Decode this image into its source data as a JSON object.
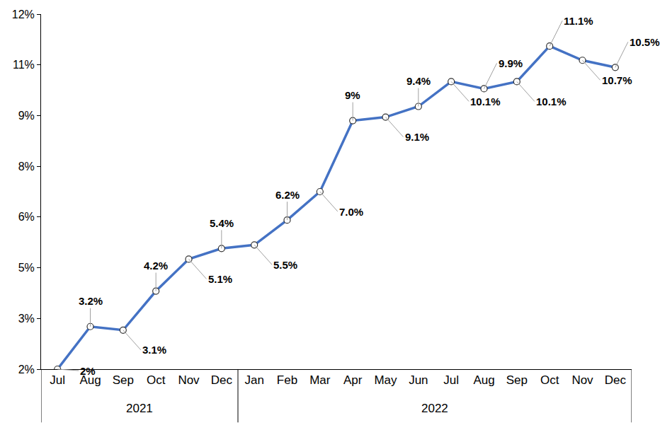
{
  "chart_data": {
    "type": "line",
    "categories": [
      "Jul",
      "Aug",
      "Sep",
      "Oct",
      "Nov",
      "Dec",
      "Jan",
      "Feb",
      "Mar",
      "Apr",
      "May",
      "Jun",
      "Jul",
      "Aug",
      "Sep",
      "Oct",
      "Nov",
      "Dec"
    ],
    "category_groups": [
      "2021",
      "2021",
      "2021",
      "2021",
      "2021",
      "2021",
      "2022",
      "2022",
      "2022",
      "2022",
      "2022",
      "2022",
      "2022",
      "2022",
      "2022",
      "2022",
      "2022",
      "2022"
    ],
    "values": [
      2,
      3.2,
      3.1,
      4.2,
      5.1,
      5.4,
      5.5,
      6.2,
      7.0,
      9,
      9.1,
      9.4,
      10.1,
      9.9,
      10.1,
      11.1,
      10.7,
      10.5
    ],
    "value_labels": [
      "2%",
      "3.2%",
      "3.1%",
      "4.2%",
      "5.1%",
      "5.4%",
      "5.5%",
      "6.2%",
      "7.0%",
      "9%",
      "9.1%",
      "9.4%",
      "10.1%",
      "9.9%",
      "10.1%",
      "11.1%",
      "10.7%",
      "10.5%"
    ],
    "data_labels": true,
    "color": "#4472c4",
    "marker": "circle",
    "ylim": [
      2,
      12
    ],
    "yticks": [
      {
        "value": 2,
        "label": "2%"
      },
      {
        "value": 3.43,
        "label": "3%"
      },
      {
        "value": 4.86,
        "label": "5%"
      },
      {
        "value": 6.29,
        "label": "6%"
      },
      {
        "value": 7.71,
        "label": "8%"
      },
      {
        "value": 9.14,
        "label": "9%"
      },
      {
        "value": 10.57,
        "label": "11%"
      },
      {
        "value": 12,
        "label": "12%"
      }
    ],
    "grid": false
  }
}
